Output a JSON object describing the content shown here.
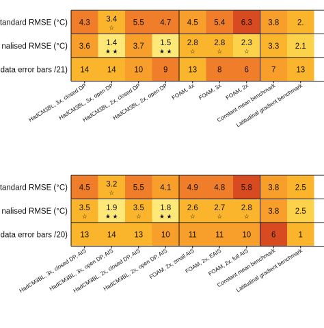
{
  "colors": {
    "r1": "#f07d2a",
    "r2": "#f79f2a",
    "r3": "#fbb52c",
    "r4": "#fcd24a",
    "r5": "#fde878",
    "dark": "#d84b20",
    "grid": "#111111"
  },
  "chart_data": [
    {
      "type": "heatmap",
      "rows": [
        "tandard RMSE (°C)",
        "nalised RMSE (°C)",
        "data error bars /21)"
      ],
      "columns": [
        "HadCM3BL, 3x, closed DP",
        "HadCM3BL, 3x, open DP",
        "HadCM3BL, 2x, closed DP",
        "HadCM3BL, 2x, open DP",
        "FOAM, 4x",
        "FOAM, 3x",
        "FOAM, 2x",
        "Constant mean benchmark",
        "Latitudinal gradient benchmark"
      ],
      "values": [
        [
          "4.3",
          "3.4",
          "5.5",
          "4.7",
          "4.5",
          "5.4",
          "6.3",
          "3.8",
          "2."
        ],
        [
          "3.6",
          "1.4",
          "3.7",
          "1.5",
          "2.8",
          "2.8",
          "2.3",
          "3.3",
          "2.1"
        ],
        [
          "14",
          "14",
          "10",
          "9",
          "13",
          "8",
          "6",
          "7",
          "13"
        ]
      ],
      "shades": [
        [
          "r1",
          "r3",
          "r1",
          "r1",
          "r2",
          "r1",
          "dark",
          "r2",
          "r3"
        ],
        [
          "r2",
          "r5",
          "r2",
          "r5",
          "r3",
          "r3",
          "r4",
          "r3",
          "r4"
        ],
        [
          "r3",
          "r3",
          "r2",
          "r1",
          "r3",
          "r1",
          "r1",
          "r2",
          "r3"
        ]
      ],
      "stars": [
        [
          "",
          "☆",
          "",
          "",
          "",
          "",
          "",
          "",
          ""
        ],
        [
          "",
          "★ ★",
          "",
          "★ ★",
          "☆",
          "☆",
          "☆",
          "",
          ""
        ],
        [
          "",
          "",
          "",
          "",
          "",
          "",
          "",
          "",
          ""
        ]
      ],
      "groups": [
        [
          0,
          3
        ],
        [
          4,
          6
        ],
        [
          7,
          8
        ]
      ]
    },
    {
      "type": "heatmap",
      "rows": [
        "tandard RMSE (°C)",
        "nalised RMSE (°C)",
        "data error bars /20)"
      ],
      "columns": [
        "HadCM3BL, 3x, closed DP, AIS",
        "HadCM3BL, 3x, open DP, AIS",
        "HadCM3BL, 2x, closed DP, AIS",
        "HadCM3BL, 2x, open DP, AIS",
        "FOAM, 2x, small AIS",
        "FOAM, 2x, EAIS",
        "FOAM, 2x, full AIS",
        "Constant mean benchmark",
        "Latitudinal gradient benchmark"
      ],
      "values": [
        [
          "4.5",
          "3.2",
          "5.5",
          "4.1",
          "4.9",
          "4.8",
          "5.8",
          "3.8",
          "2.5"
        ],
        [
          "3.5",
          "1.9",
          "3.5",
          "1.8",
          "2.6",
          "2.7",
          "2.8",
          "3.8",
          "2.5"
        ],
        [
          "13",
          "14",
          "13",
          "10",
          "11",
          "11",
          "10",
          "6",
          "1"
        ]
      ],
      "shades": [
        [
          "r1",
          "r3",
          "r1",
          "r2",
          "r1",
          "r1",
          "dark",
          "r2",
          "r3"
        ],
        [
          "r3",
          "r5",
          "r3",
          "r5",
          "r3",
          "r3",
          "r3",
          "r2",
          "r4"
        ],
        [
          "r3",
          "r3",
          "r3",
          "r2",
          "r2",
          "r2",
          "r2",
          "dark",
          "r3"
        ]
      ],
      "stars": [
        [
          "",
          "☆",
          "",
          "",
          "",
          "",
          "",
          "",
          ""
        ],
        [
          "☆",
          "★ ★",
          "☆",
          "★ ★",
          "☆",
          "☆",
          "☆",
          "",
          ""
        ],
        [
          "",
          "",
          "",
          "",
          "",
          "",
          "",
          "",
          ""
        ]
      ],
      "groups": [
        [
          0,
          3
        ],
        [
          4,
          6
        ],
        [
          7,
          8
        ]
      ]
    }
  ]
}
